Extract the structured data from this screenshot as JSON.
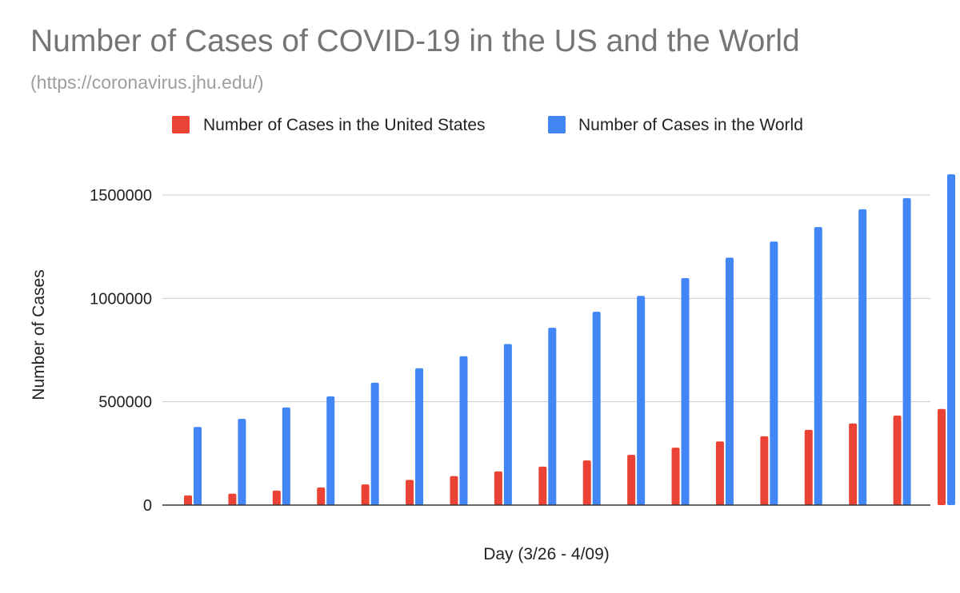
{
  "chart_data": {
    "type": "bar",
    "title": "Number of Cases of COVID-19 in the US and the World",
    "subtitle": "(https://coronavirus.jhu.edu/)",
    "xlabel": "Day (3/26 - 4/09)",
    "ylabel": "Number of Cases",
    "ylim": [
      0,
      1500000
    ],
    "yticks": [
      {
        "value": 0,
        "label": "0"
      },
      {
        "value": 500000,
        "label": "500000"
      },
      {
        "value": 1000000,
        "label": "1000000"
      },
      {
        "value": 1500000,
        "label": "1500000"
      }
    ],
    "grid": true,
    "legend_position": "top",
    "series": [
      {
        "name": "Number of Cases in the United States",
        "color": "#ea4335",
        "values": [
          47000,
          55000,
          70000,
          85000,
          100000,
          122000,
          140000,
          163000,
          186000,
          216000,
          243000,
          278000,
          308000,
          333000,
          364000,
          395000,
          433000,
          465000
        ]
      },
      {
        "name": "Number of Cases in the World",
        "color": "#4285f4",
        "values": [
          378000,
          417000,
          472000,
          526000,
          592000,
          662000,
          720000,
          779000,
          858000,
          935000,
          1012000,
          1098000,
          1197000,
          1275000,
          1345000,
          1431000,
          1485000,
          1600000
        ]
      }
    ]
  }
}
